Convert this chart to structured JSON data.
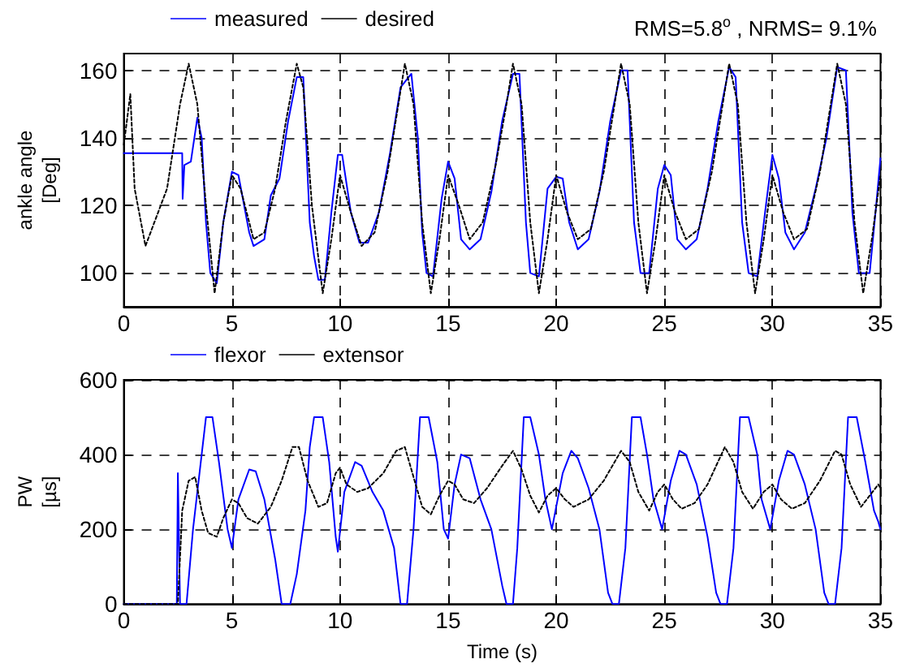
{
  "chart_data": [
    {
      "type": "line",
      "title": "RMS=5.8$^{o}$ , NRMS= 9.1%",
      "ylabel": "ankle angle\n[Deg]",
      "xlim": [
        0,
        35
      ],
      "xticks": [
        0,
        5,
        10,
        15,
        20,
        25,
        30,
        35
      ],
      "ylim": [
        90,
        165
      ],
      "yticks": [
        100,
        120,
        140,
        160
      ],
      "grid": true,
      "legend": "top left",
      "marker": "none",
      "series": [
        {
          "name": "measured",
          "color": "#0000ff",
          "line_style": "solid",
          "x": [
            0,
            2.7,
            2.72,
            2.8,
            3.1,
            3.4,
            3.6,
            3.8,
            4.0,
            4.3,
            4.6,
            5.0,
            5.3,
            5.8,
            6.0,
            6.5,
            6.8,
            7.2,
            7.6,
            8.0,
            8.3,
            8.6,
            8.8,
            9.0,
            9.3,
            9.6,
            9.9,
            10.1,
            10.5,
            10.9,
            11.3,
            11.8,
            12.3,
            12.8,
            13.3,
            13.6,
            13.8,
            14.0,
            14.3,
            14.7,
            15.0,
            15.3,
            15.6,
            16.0,
            16.5,
            17.0,
            17.5,
            18.0,
            18.3,
            18.6,
            18.8,
            19.2,
            19.6,
            20.0,
            20.3,
            20.6,
            21.0,
            21.5,
            22.0,
            22.5,
            23.0,
            23.3,
            23.6,
            23.9,
            24.3,
            24.7,
            25.0,
            25.3,
            25.6,
            26.0,
            26.5,
            27.0,
            27.5,
            28.0,
            28.3,
            28.6,
            28.9,
            29.3,
            29.7,
            30.0,
            30.3,
            30.6,
            31.0,
            31.5,
            32.0,
            32.5,
            33.0,
            33.4,
            33.7,
            34.0,
            34.5,
            34.8,
            35.0
          ],
          "values": [
            135.5,
            135.5,
            122,
            132,
            133,
            146,
            140,
            115,
            100,
            97,
            115,
            130,
            129,
            112,
            108,
            110,
            123,
            128,
            145,
            158,
            158,
            115,
            105,
            98,
            98,
            118,
            135,
            135,
            118,
            109,
            109,
            118,
            135,
            155,
            159,
            140,
            112,
            100,
            99,
            122,
            133,
            128,
            110,
            107,
            110,
            124,
            145,
            159,
            159,
            115,
            100,
            99,
            125,
            128.5,
            128,
            115,
            107,
            110,
            124,
            145,
            160,
            160,
            115,
            100,
            100,
            125,
            132,
            129,
            110,
            107,
            110,
            125,
            145,
            161,
            158,
            115,
            100,
            99,
            120,
            135,
            128,
            112,
            107,
            112,
            125,
            140,
            161,
            160,
            118,
            100,
            100,
            120,
            134
          ]
        },
        {
          "name": "desired",
          "color": "#000000",
          "line_style": "dotted",
          "x": [
            0,
            0.3,
            0.5,
            1.0,
            2.0,
            2.6,
            3.0,
            3.4,
            3.8,
            4.2,
            4.6,
            5.0,
            5.4,
            6.0,
            6.5,
            7.0,
            7.5,
            8.0,
            8.3,
            8.7,
            9.2,
            9.6,
            10.0,
            10.5,
            11.0,
            11.6,
            12.2,
            12.7,
            13.0,
            13.4,
            13.8,
            14.2,
            14.6,
            15.0,
            15.5,
            16.0,
            16.6,
            17.2,
            17.7,
            18.0,
            18.4,
            18.8,
            19.2,
            19.6,
            20.0,
            20.5,
            21.0,
            21.6,
            22.2,
            22.7,
            23.0,
            23.4,
            23.8,
            24.2,
            24.6,
            25.0,
            25.5,
            26.0,
            26.6,
            27.2,
            27.7,
            28.0,
            28.4,
            28.8,
            29.2,
            29.6,
            30.0,
            30.5,
            31.0,
            31.6,
            32.2,
            32.7,
            33.0,
            33.4,
            33.8,
            34.2,
            34.6,
            35.0
          ],
          "values": [
            138,
            153,
            125,
            108,
            125,
            150,
            162,
            150,
            120,
            94,
            115,
            129,
            125,
            110,
            112,
            125,
            145,
            162,
            155,
            120,
            94,
            110,
            129,
            118,
            108,
            112,
            130,
            150,
            162,
            150,
            115,
            94,
            110,
            129,
            120,
            110,
            115,
            132,
            150,
            162,
            150,
            115,
            94,
            110,
            129,
            118,
            110,
            113,
            130,
            150,
            162,
            150,
            115,
            94,
            110,
            129,
            118,
            110,
            113,
            130,
            150,
            162,
            150,
            115,
            94,
            110,
            129,
            118,
            110,
            113,
            130,
            150,
            162,
            150,
            115,
            94,
            110,
            129
          ]
        }
      ]
    },
    {
      "type": "line",
      "xlabel": "Time (s)",
      "ylabel": "PW\n[µs]",
      "xlim": [
        0,
        35
      ],
      "xticks": [
        0,
        5,
        10,
        15,
        20,
        25,
        30,
        35
      ],
      "ylim": [
        0,
        600
      ],
      "yticks": [
        0,
        200,
        400,
        600
      ],
      "grid": true,
      "legend": "top left",
      "marker": "none",
      "series": [
        {
          "name": "flexor",
          "color": "#0000ff",
          "line_style": "solid",
          "x": [
            0,
            2.45,
            2.5,
            2.6,
            2.9,
            3.2,
            3.5,
            3.8,
            4.1,
            4.4,
            4.8,
            5.0,
            5.3,
            5.8,
            6.1,
            6.5,
            7.0,
            7.3,
            7.7,
            8.0,
            8.4,
            8.6,
            8.8,
            9.2,
            9.5,
            9.8,
            9.9,
            10.2,
            10.7,
            11.0,
            11.5,
            12.0,
            12.5,
            12.8,
            13.1,
            13.4,
            13.7,
            14.1,
            14.5,
            14.8,
            15.0,
            15.3,
            15.6,
            16.0,
            16.5,
            17.0,
            17.5,
            17.7,
            18.0,
            18.2,
            18.5,
            18.8,
            19.2,
            19.5,
            19.8,
            20.3,
            20.7,
            21.0,
            21.5,
            22.0,
            22.4,
            22.6,
            22.9,
            23.2,
            23.5,
            23.9,
            24.2,
            24.5,
            24.9,
            25.3,
            25.7,
            26.0,
            26.5,
            27.0,
            27.4,
            27.6,
            27.9,
            28.2,
            28.5,
            28.9,
            29.3,
            29.5,
            29.9,
            30.3,
            30.7,
            31.0,
            31.5,
            32.0,
            32.4,
            32.6,
            32.9,
            33.2,
            33.5,
            33.9,
            34.3,
            34.7,
            34.9,
            35.0
          ],
          "values": [
            0,
            0,
            350,
            0,
            0,
            200,
            350,
            500,
            500,
            380,
            200,
            150,
            280,
            360,
            355,
            280,
            120,
            0,
            0,
            80,
            250,
            420,
            500,
            500,
            380,
            180,
            140,
            300,
            380,
            370,
            300,
            250,
            150,
            0,
            0,
            200,
            500,
            500,
            380,
            200,
            175,
            320,
            400,
            390,
            280,
            200,
            50,
            0,
            0,
            150,
            500,
            500,
            400,
            280,
            200,
            350,
            410,
            390,
            310,
            200,
            30,
            0,
            0,
            150,
            500,
            500,
            400,
            280,
            200,
            330,
            410,
            400,
            320,
            180,
            30,
            0,
            0,
            150,
            500,
            500,
            400,
            280,
            200,
            330,
            410,
            400,
            320,
            200,
            30,
            0,
            0,
            150,
            500,
            500,
            380,
            250,
            220,
            200
          ]
        },
        {
          "name": "extensor",
          "color": "#000000",
          "line_style": "dotted",
          "x": [
            0,
            2.5,
            2.7,
            3.0,
            3.3,
            3.6,
            3.9,
            4.3,
            4.6,
            5.0,
            5.3,
            5.7,
            6.2,
            6.8,
            7.3,
            7.8,
            8.1,
            8.5,
            9.0,
            9.4,
            9.8,
            10.0,
            10.3,
            10.8,
            11.3,
            12.0,
            12.6,
            13.0,
            13.4,
            13.8,
            14.2,
            14.6,
            15.0,
            15.3,
            15.7,
            16.2,
            16.8,
            17.5,
            18.0,
            18.4,
            18.8,
            19.2,
            19.6,
            20.0,
            20.4,
            20.8,
            21.5,
            22.2,
            23.0,
            23.4,
            23.8,
            24.3,
            24.7,
            25.0,
            25.4,
            25.8,
            26.4,
            27.0,
            27.8,
            28.2,
            28.6,
            29.1,
            29.6,
            30.0,
            30.4,
            30.9,
            31.5,
            32.2,
            32.9,
            33.2,
            33.6,
            34.1,
            34.5,
            34.9,
            35.0
          ],
          "values": [
            0,
            0,
            250,
            330,
            340,
            250,
            190,
            180,
            230,
            280,
            270,
            230,
            215,
            260,
            330,
            420,
            420,
            330,
            260,
            270,
            350,
            365,
            320,
            300,
            310,
            350,
            410,
            420,
            340,
            260,
            240,
            290,
            330,
            320,
            280,
            270,
            310,
            370,
            410,
            360,
            290,
            245,
            290,
            310,
            280,
            260,
            280,
            330,
            410,
            380,
            300,
            250,
            300,
            320,
            280,
            255,
            270,
            320,
            420,
            380,
            300,
            255,
            300,
            320,
            280,
            255,
            270,
            330,
            410,
            400,
            320,
            260,
            290,
            320,
            310
          ]
        }
      ]
    }
  ]
}
